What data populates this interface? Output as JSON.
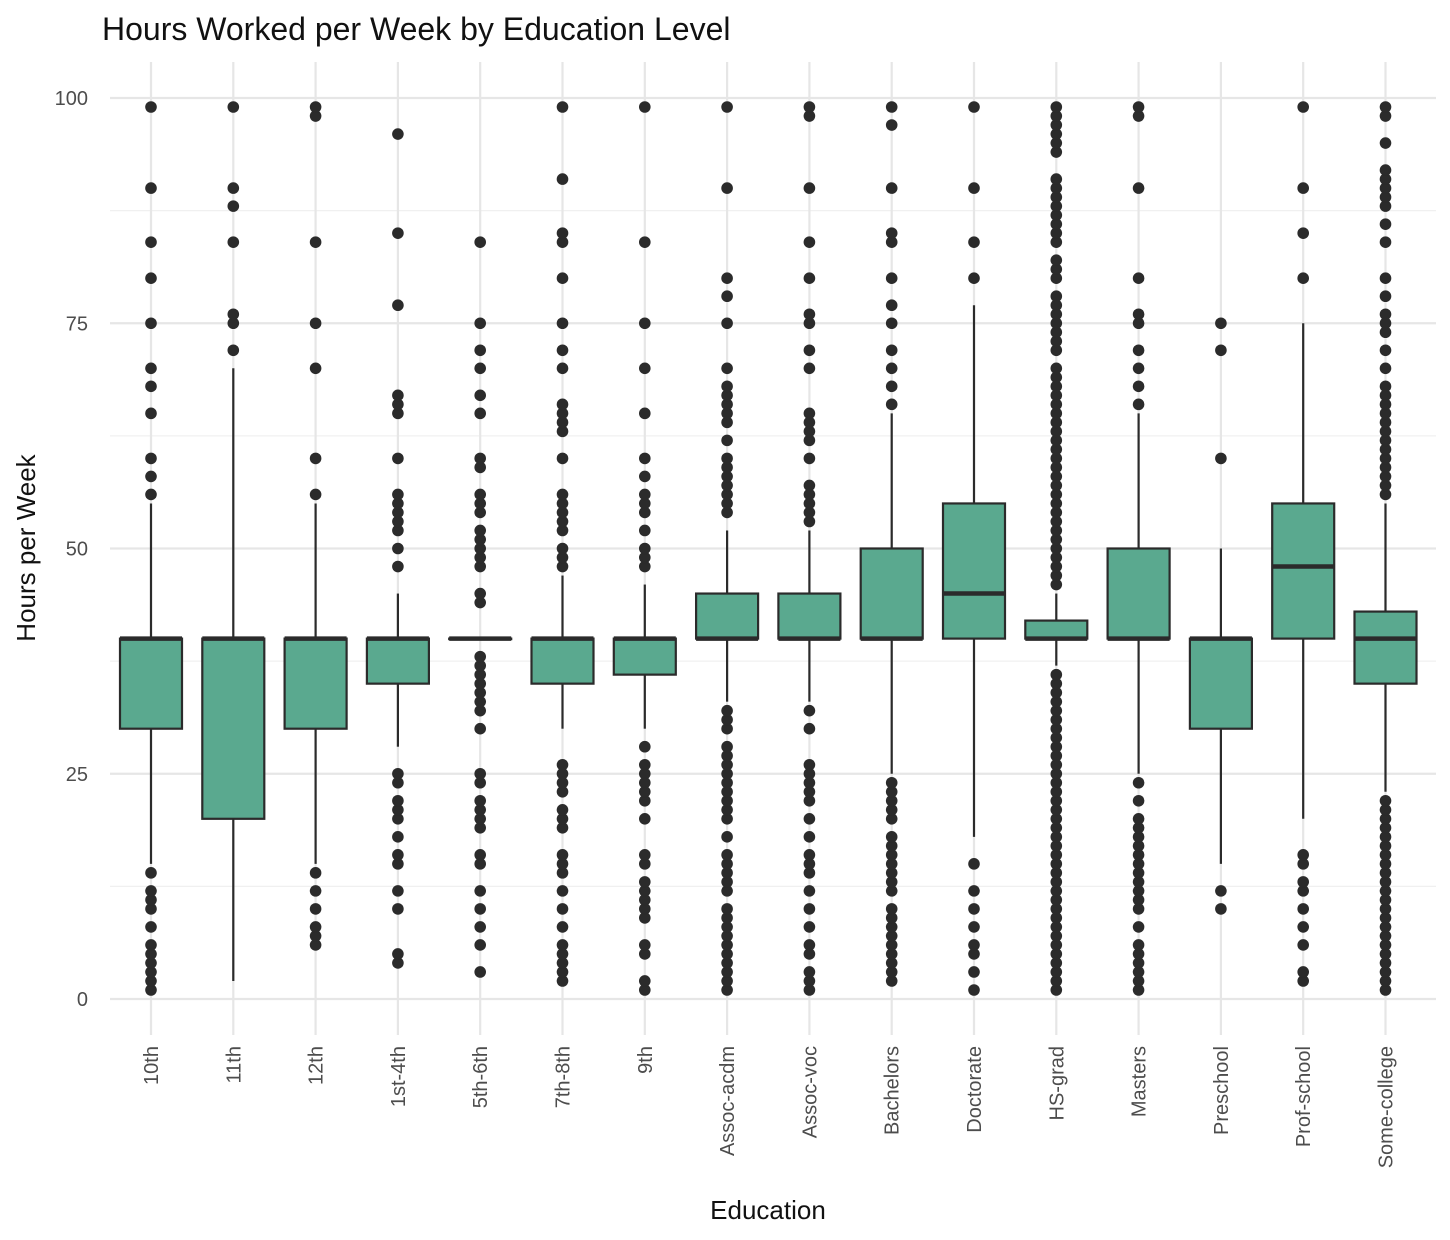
{
  "chart_data": {
    "type": "boxplot",
    "title": "Hours Worked per Week by Education Level",
    "xlabel": "Education",
    "ylabel": "Hours per Week",
    "ylim": [
      -4,
      103
    ],
    "y_ticks": [
      0,
      25,
      50,
      75,
      100
    ],
    "y_tick_labels": [
      "0",
      "25",
      "50",
      "75",
      "100"
    ],
    "grid": true,
    "legend": "none",
    "fill_color": "#5aa98f",
    "outline_color": "#2b2b2b",
    "point_color": "#2b2b2b",
    "categories": [
      "10th",
      "11th",
      "12th",
      "1st-4th",
      "5th-6th",
      "7th-8th",
      "9th",
      "Assoc-acdm",
      "Assoc-voc",
      "Bachelors",
      "Doctorate",
      "HS-grad",
      "Masters",
      "Preschool",
      "Prof-school",
      "Some-college"
    ],
    "boxes": [
      {
        "category": "10th",
        "whisker_low": 15,
        "q1": 30,
        "median": 40,
        "q3": 40,
        "whisker_high": 55,
        "outliers": [
          1,
          2,
          3,
          4,
          5,
          6,
          8,
          10,
          11,
          12,
          14,
          56,
          58,
          60,
          65,
          68,
          70,
          75,
          80,
          84,
          90,
          99
        ]
      },
      {
        "category": "11th",
        "whisker_low": 2,
        "q1": 20,
        "median": 40,
        "q3": 40,
        "whisker_high": 70,
        "outliers": [
          72,
          75,
          76,
          84,
          88,
          90,
          99
        ]
      },
      {
        "category": "12th",
        "whisker_low": 15,
        "q1": 30,
        "median": 40,
        "q3": 40,
        "whisker_high": 55,
        "outliers": [
          6,
          7,
          8,
          10,
          12,
          14,
          56,
          60,
          70,
          75,
          84,
          98,
          99
        ]
      },
      {
        "category": "1st-4th",
        "whisker_low": 28,
        "q1": 35,
        "median": 40,
        "q3": 40,
        "whisker_high": 45,
        "outliers": [
          4,
          5,
          10,
          12,
          15,
          16,
          18,
          20,
          21,
          22,
          24,
          25,
          48,
          50,
          52,
          53,
          54,
          55,
          56,
          60,
          65,
          66,
          67,
          77,
          85,
          96
        ]
      },
      {
        "category": "5th-6th",
        "whisker_low": 40,
        "q1": 40,
        "median": 40,
        "q3": 40,
        "whisker_high": 40,
        "outliers": [
          3,
          6,
          8,
          10,
          12,
          15,
          16,
          19,
          20,
          21,
          22,
          24,
          25,
          30,
          32,
          33,
          34,
          35,
          36,
          37,
          38,
          44,
          45,
          48,
          49,
          50,
          51,
          52,
          54,
          55,
          56,
          59,
          60,
          65,
          67,
          70,
          72,
          75,
          84
        ]
      },
      {
        "category": "7th-8th",
        "whisker_low": 30,
        "q1": 35,
        "median": 40,
        "q3": 40,
        "whisker_high": 47,
        "outliers": [
          2,
          3,
          4,
          5,
          6,
          8,
          10,
          12,
          14,
          15,
          16,
          19,
          20,
          21,
          23,
          24,
          25,
          26,
          48,
          49,
          50,
          52,
          53,
          54,
          55,
          56,
          60,
          63,
          64,
          65,
          66,
          70,
          72,
          75,
          80,
          84,
          85,
          91,
          99
        ]
      },
      {
        "category": "9th",
        "whisker_low": 30,
        "q1": 36,
        "median": 40,
        "q3": 40,
        "whisker_high": 46,
        "outliers": [
          1,
          2,
          5,
          6,
          9,
          10,
          11,
          12,
          13,
          15,
          16,
          20,
          22,
          23,
          24,
          25,
          26,
          28,
          48,
          49,
          50,
          52,
          54,
          55,
          56,
          58,
          60,
          65,
          70,
          75,
          84,
          99
        ]
      },
      {
        "category": "Assoc-acdm",
        "whisker_low": 33,
        "q1": 40,
        "median": 40,
        "q3": 45,
        "whisker_high": 52,
        "outliers": [
          1,
          2,
          3,
          4,
          5,
          6,
          7,
          8,
          9,
          10,
          12,
          13,
          14,
          15,
          16,
          18,
          20,
          21,
          22,
          23,
          24,
          25,
          26,
          27,
          28,
          30,
          31,
          32,
          54,
          55,
          56,
          57,
          58,
          59,
          60,
          62,
          64,
          65,
          66,
          67,
          68,
          70,
          75,
          78,
          80,
          90,
          99
        ]
      },
      {
        "category": "Assoc-voc",
        "whisker_low": 33,
        "q1": 40,
        "median": 40,
        "q3": 45,
        "whisker_high": 52,
        "outliers": [
          1,
          2,
          3,
          5,
          6,
          8,
          10,
          12,
          14,
          15,
          16,
          18,
          20,
          22,
          23,
          24,
          25,
          26,
          30,
          32,
          53,
          54,
          55,
          56,
          57,
          60,
          62,
          63,
          64,
          65,
          70,
          72,
          75,
          76,
          80,
          84,
          90,
          98,
          99
        ]
      },
      {
        "category": "Bachelors",
        "whisker_low": 25,
        "q1": 40,
        "median": 40,
        "q3": 50,
        "whisker_high": 65,
        "outliers": [
          2,
          3,
          4,
          5,
          6,
          7,
          8,
          9,
          10,
          12,
          13,
          14,
          15,
          16,
          17,
          18,
          20,
          21,
          22,
          23,
          24,
          66,
          68,
          70,
          72,
          75,
          77,
          80,
          84,
          85,
          90,
          97,
          99
        ]
      },
      {
        "category": "Doctorate",
        "whisker_low": 18,
        "q1": 40,
        "median": 45,
        "q3": 55,
        "whisker_high": 77,
        "outliers": [
          1,
          3,
          5,
          6,
          8,
          10,
          12,
          15,
          80,
          84,
          90,
          99
        ]
      },
      {
        "category": "HS-grad",
        "whisker_low": 37,
        "q1": 40,
        "median": 40,
        "q3": 42,
        "whisker_high": 45,
        "outliers": [
          1,
          2,
          3,
          4,
          5,
          6,
          7,
          8,
          9,
          10,
          11,
          12,
          13,
          14,
          15,
          16,
          17,
          18,
          19,
          20,
          21,
          22,
          23,
          24,
          25,
          26,
          27,
          28,
          29,
          30,
          31,
          32,
          33,
          34,
          35,
          36,
          46,
          47,
          48,
          49,
          50,
          51,
          52,
          53,
          54,
          55,
          56,
          57,
          58,
          59,
          60,
          61,
          62,
          63,
          64,
          65,
          66,
          67,
          68,
          69,
          70,
          72,
          73,
          74,
          75,
          76,
          77,
          78,
          80,
          81,
          82,
          84,
          85,
          86,
          87,
          88,
          89,
          90,
          91,
          94,
          95,
          96,
          97,
          98,
          99
        ]
      },
      {
        "category": "Masters",
        "whisker_low": 25,
        "q1": 40,
        "median": 40,
        "q3": 50,
        "whisker_high": 65,
        "outliers": [
          1,
          2,
          3,
          4,
          5,
          6,
          8,
          10,
          11,
          12,
          13,
          14,
          15,
          16,
          17,
          18,
          19,
          20,
          22,
          24,
          66,
          68,
          70,
          72,
          75,
          76,
          80,
          90,
          98,
          99
        ]
      },
      {
        "category": "Preschool",
        "whisker_low": 15,
        "q1": 30,
        "median": 40,
        "q3": 40,
        "whisker_high": 50,
        "outliers": [
          10,
          12,
          60,
          72,
          75
        ]
      },
      {
        "category": "Prof-school",
        "whisker_low": 20,
        "q1": 40,
        "median": 48,
        "q3": 55,
        "whisker_high": 75,
        "outliers": [
          2,
          3,
          6,
          8,
          10,
          12,
          13,
          15,
          16,
          80,
          85,
          90,
          99
        ]
      },
      {
        "category": "Some-college",
        "whisker_low": 23,
        "q1": 35,
        "median": 40,
        "q3": 43,
        "whisker_high": 55,
        "outliers": [
          1,
          2,
          3,
          4,
          5,
          6,
          7,
          8,
          9,
          10,
          11,
          12,
          13,
          14,
          15,
          16,
          17,
          18,
          19,
          20,
          21,
          22,
          56,
          57,
          58,
          59,
          60,
          61,
          62,
          63,
          64,
          65,
          66,
          67,
          68,
          70,
          72,
          74,
          75,
          76,
          78,
          80,
          84,
          86,
          88,
          89,
          90,
          91,
          92,
          95,
          98,
          99
        ]
      }
    ]
  }
}
